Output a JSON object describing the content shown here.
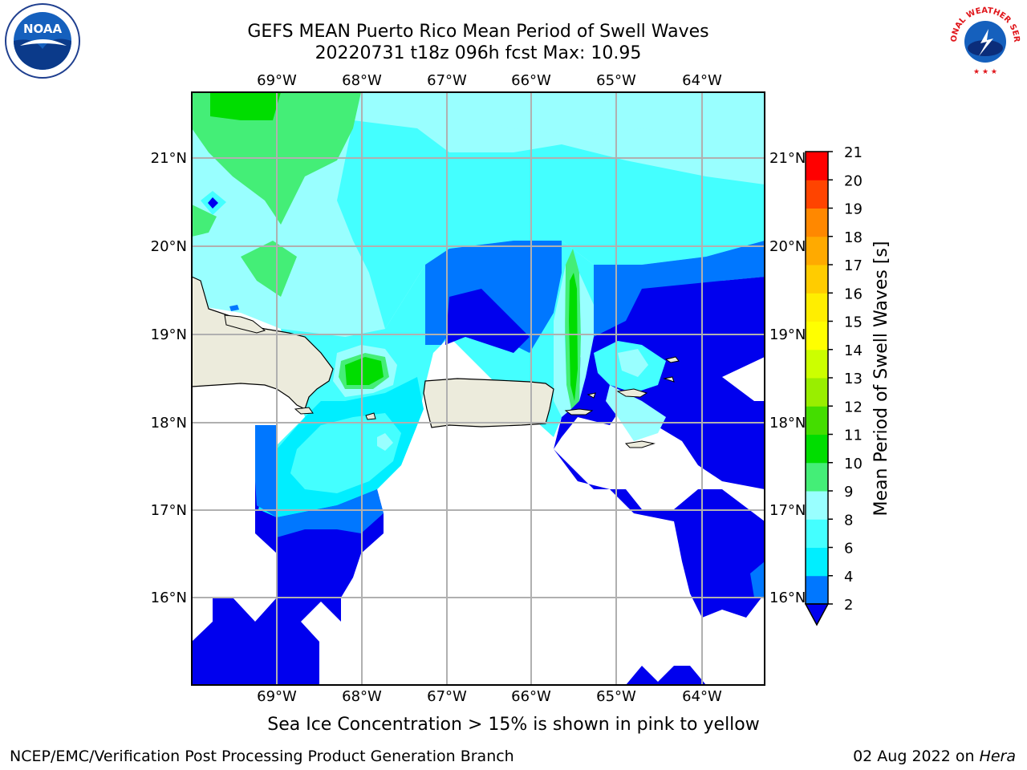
{
  "title_line1": "GEFS MEAN Puerto Rico Mean Period of Swell Waves",
  "title_line2": "20220731 t18z 096h fcst   Max: 10.95",
  "lon_labels": [
    "69°W",
    "68°W",
    "67°W",
    "66°W",
    "65°W",
    "64°W"
  ],
  "lat_labels": [
    "21°N",
    "20°N",
    "19°N",
    "18°N",
    "17°N",
    "16°N"
  ],
  "colorbar": {
    "label": "Mean Period of Swell Waves [s]",
    "ticks": [
      "2",
      "4",
      "6",
      "8",
      "9",
      "10",
      "11",
      "12",
      "13",
      "14",
      "15",
      "16",
      "17",
      "18",
      "19",
      "20",
      "21"
    ],
    "colors": [
      "#0000ee",
      "#0077ff",
      "#00eeff",
      "#44ffff",
      "#99ffff",
      "#44ee77",
      "#00dd00",
      "#44dd00",
      "#99ee00",
      "#ccff00",
      "#ffff00",
      "#ffee00",
      "#ffcc00",
      "#ffaa00",
      "#ff8800",
      "#ff4400",
      "#ff0000"
    ]
  },
  "colors": {
    "land": "#ecebdc",
    "grid": "#b0b0b0",
    "open_water": "#ffffff"
  },
  "footer": {
    "ice_note": "Sea Ice Concentration > 15% is shown in pink to yellow",
    "credit": "NCEP/EMC/Verification Post Processing Product Generation Branch",
    "date": "02 Aug 2022 on ",
    "machine": "Hera"
  },
  "logos": {
    "noaa": "NOAA",
    "nws": "NATIONAL WEATHER SERVICE"
  }
}
